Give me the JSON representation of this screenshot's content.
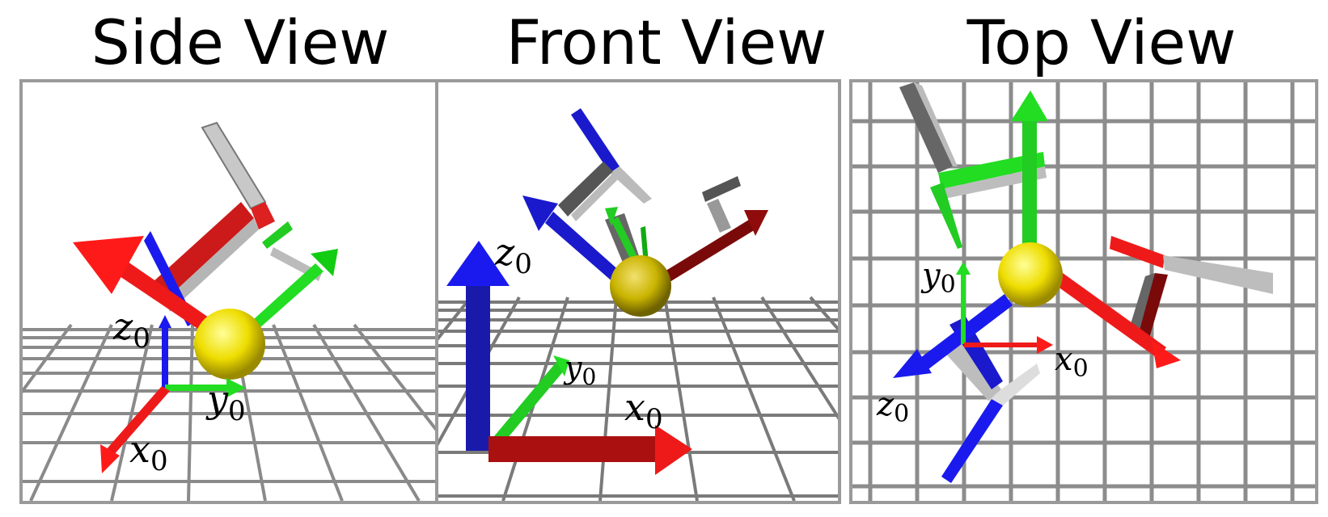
{
  "views": [
    {
      "title": "Side View",
      "labels": {
        "x": "x",
        "y": "y",
        "z": "z",
        "sub": "0"
      }
    },
    {
      "title": "Front View",
      "labels": {
        "x": "x",
        "y": "y",
        "z": "z",
        "sub": "0"
      }
    },
    {
      "title": "Top View",
      "labels": {
        "x": "x",
        "y": "y",
        "z": "z",
        "sub": "0"
      }
    }
  ],
  "colors": {
    "x_axis": "#ff1a1a",
    "y_axis": "#22dd22",
    "z_axis": "#1414ee",
    "sphere": "#eedd00",
    "link": "#bdbdbd",
    "grid": "#7a7a7a",
    "border": "#9a9a9a"
  }
}
